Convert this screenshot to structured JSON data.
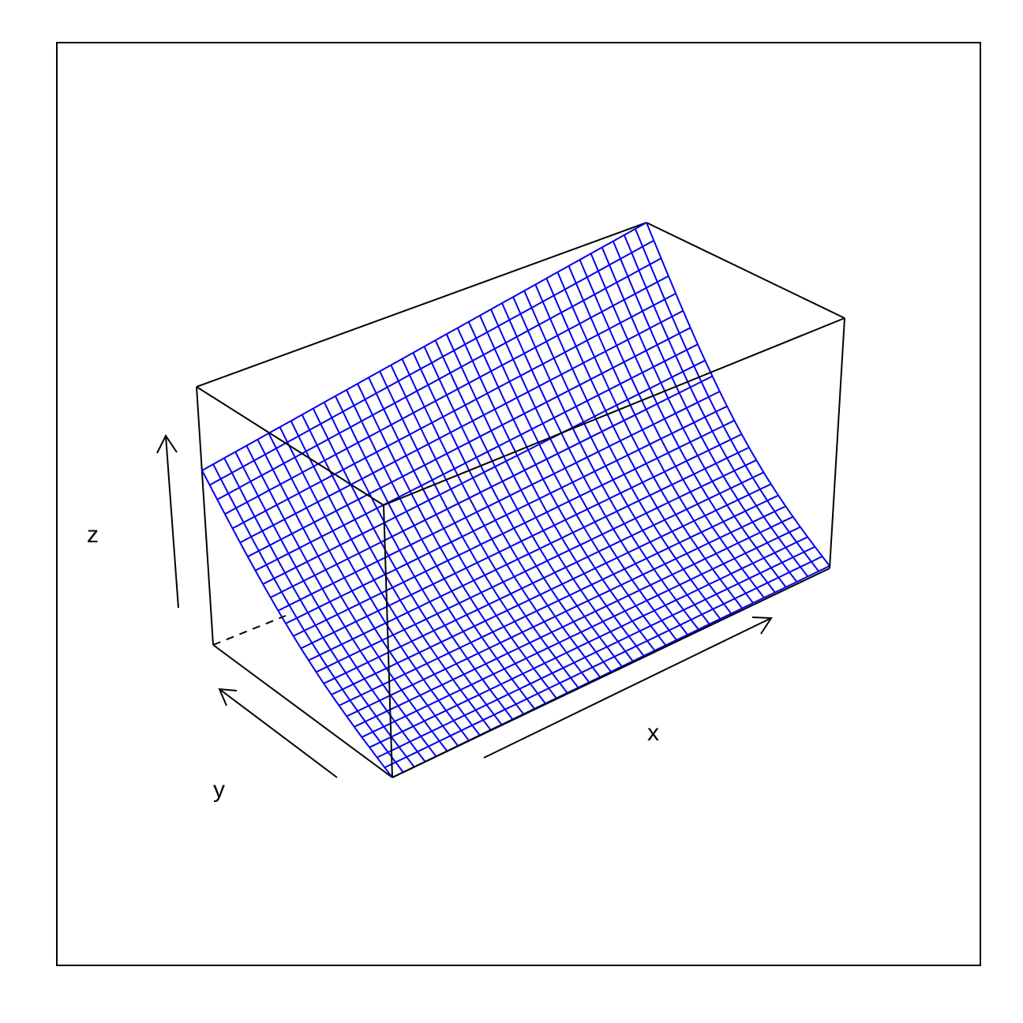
{
  "chart_data": {
    "type": "surface",
    "title": "",
    "xlabel": "x",
    "ylabel": "y",
    "zlabel": "z",
    "grid_lines_x": 40,
    "grid_lines_y": 25,
    "surface_description_values": {
      "z_rises_along": "y",
      "shape": "convex increasing in y, nearly flat in x"
    },
    "colors": {
      "surface": "#0000ee",
      "box": "#000000",
      "background": "#ffffff"
    }
  }
}
